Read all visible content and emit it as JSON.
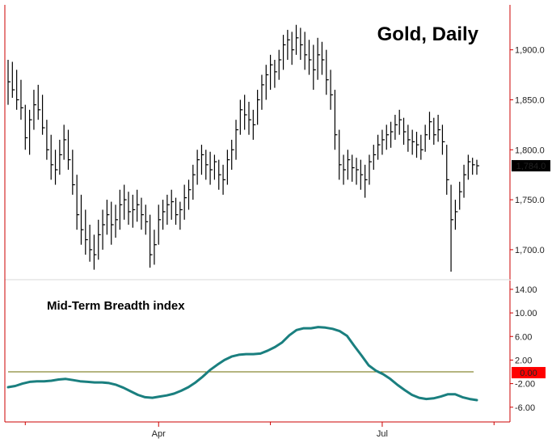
{
  "chart_data": [
    {
      "type": "ohlc",
      "title": "Gold, Daily",
      "last_value_label": "1,784.0",
      "ylim": [
        1670,
        1945
      ],
      "y_ticks": [
        1700,
        1750,
        1800,
        1850,
        1900
      ],
      "y_tick_labels": [
        "1,700.0",
        "1,750.0",
        "1,800.0",
        "1,850.0",
        "1,900.0"
      ],
      "x_tick_labels": [
        "Apr",
        "Jul"
      ],
      "grid": false,
      "colors": {
        "bars": "#000000",
        "axis": "#cc0000",
        "last_value_bg": "#000000",
        "last_value_text": "#ffffff"
      },
      "bars": [
        {
          "high": 1890,
          "low": 1845,
          "close": 1868
        },
        {
          "high": 1888,
          "low": 1852,
          "close": 1860
        },
        {
          "high": 1880,
          "low": 1840,
          "close": 1850
        },
        {
          "high": 1870,
          "low": 1830,
          "close": 1842
        },
        {
          "high": 1845,
          "low": 1800,
          "close": 1812
        },
        {
          "high": 1840,
          "low": 1795,
          "close": 1830
        },
        {
          "high": 1860,
          "low": 1820,
          "close": 1845
        },
        {
          "high": 1865,
          "low": 1830,
          "close": 1840
        },
        {
          "high": 1855,
          "low": 1815,
          "close": 1822
        },
        {
          "high": 1830,
          "low": 1790,
          "close": 1800
        },
        {
          "high": 1815,
          "low": 1770,
          "close": 1785
        },
        {
          "high": 1800,
          "low": 1765,
          "close": 1780
        },
        {
          "high": 1810,
          "low": 1775,
          "close": 1795
        },
        {
          "high": 1825,
          "low": 1790,
          "close": 1810
        },
        {
          "high": 1820,
          "low": 1780,
          "close": 1790
        },
        {
          "high": 1800,
          "low": 1755,
          "close": 1765
        },
        {
          "high": 1775,
          "low": 1720,
          "close": 1735
        },
        {
          "high": 1755,
          "low": 1705,
          "close": 1720
        },
        {
          "high": 1740,
          "low": 1695,
          "close": 1710
        },
        {
          "high": 1725,
          "low": 1688,
          "close": 1700
        },
        {
          "high": 1715,
          "low": 1680,
          "close": 1695
        },
        {
          "high": 1730,
          "low": 1690,
          "close": 1715
        },
        {
          "high": 1740,
          "low": 1700,
          "close": 1725
        },
        {
          "high": 1750,
          "low": 1715,
          "close": 1735
        },
        {
          "high": 1748,
          "low": 1705,
          "close": 1725
        },
        {
          "high": 1745,
          "low": 1712,
          "close": 1730
        },
        {
          "high": 1760,
          "low": 1720,
          "close": 1745
        },
        {
          "high": 1765,
          "low": 1730,
          "close": 1750
        },
        {
          "high": 1758,
          "low": 1725,
          "close": 1738
        },
        {
          "high": 1755,
          "low": 1722,
          "close": 1740
        },
        {
          "high": 1760,
          "low": 1728,
          "close": 1745
        },
        {
          "high": 1752,
          "low": 1720,
          "close": 1735
        },
        {
          "high": 1745,
          "low": 1715,
          "close": 1728
        },
        {
          "high": 1735,
          "low": 1682,
          "close": 1695
        },
        {
          "high": 1720,
          "low": 1685,
          "close": 1705
        },
        {
          "high": 1745,
          "low": 1705,
          "close": 1730
        },
        {
          "high": 1750,
          "low": 1720,
          "close": 1738
        },
        {
          "high": 1755,
          "low": 1725,
          "close": 1745
        },
        {
          "high": 1760,
          "low": 1730,
          "close": 1748
        },
        {
          "high": 1752,
          "low": 1725,
          "close": 1735
        },
        {
          "high": 1748,
          "low": 1720,
          "close": 1740
        },
        {
          "high": 1765,
          "low": 1730,
          "close": 1752
        },
        {
          "high": 1770,
          "low": 1740,
          "close": 1760
        },
        {
          "high": 1785,
          "low": 1750,
          "close": 1775
        },
        {
          "high": 1800,
          "low": 1765,
          "close": 1790
        },
        {
          "high": 1805,
          "low": 1775,
          "close": 1795
        },
        {
          "high": 1800,
          "low": 1770,
          "close": 1785
        },
        {
          "high": 1798,
          "low": 1765,
          "close": 1780
        },
        {
          "high": 1795,
          "low": 1770,
          "close": 1788
        },
        {
          "high": 1790,
          "low": 1760,
          "close": 1775
        },
        {
          "high": 1785,
          "low": 1755,
          "close": 1770
        },
        {
          "high": 1800,
          "low": 1765,
          "close": 1790
        },
        {
          "high": 1810,
          "low": 1780,
          "close": 1800
        },
        {
          "high": 1830,
          "low": 1790,
          "close": 1820
        },
        {
          "high": 1850,
          "low": 1815,
          "close": 1840
        },
        {
          "high": 1855,
          "low": 1820,
          "close": 1835
        },
        {
          "high": 1848,
          "low": 1815,
          "close": 1830
        },
        {
          "high": 1840,
          "low": 1810,
          "close": 1825
        },
        {
          "high": 1860,
          "low": 1825,
          "close": 1850
        },
        {
          "high": 1875,
          "low": 1840,
          "close": 1865
        },
        {
          "high": 1885,
          "low": 1850,
          "close": 1875
        },
        {
          "high": 1895,
          "low": 1860,
          "close": 1885
        },
        {
          "high": 1890,
          "low": 1862,
          "close": 1878
        },
        {
          "high": 1900,
          "low": 1870,
          "close": 1890
        },
        {
          "high": 1915,
          "low": 1880,
          "close": 1905
        },
        {
          "high": 1920,
          "low": 1890,
          "close": 1910
        },
        {
          "high": 1918,
          "low": 1885,
          "close": 1900
        },
        {
          "high": 1925,
          "low": 1895,
          "close": 1912
        },
        {
          "high": 1922,
          "low": 1890,
          "close": 1905
        },
        {
          "high": 1918,
          "low": 1880,
          "close": 1895
        },
        {
          "high": 1910,
          "low": 1875,
          "close": 1890
        },
        {
          "high": 1905,
          "low": 1860,
          "close": 1880
        },
        {
          "high": 1912,
          "low": 1870,
          "close": 1895
        },
        {
          "high": 1908,
          "low": 1875,
          "close": 1890
        },
        {
          "high": 1900,
          "low": 1855,
          "close": 1870
        },
        {
          "high": 1880,
          "low": 1840,
          "close": 1855
        },
        {
          "high": 1860,
          "low": 1800,
          "close": 1815
        },
        {
          "high": 1820,
          "low": 1770,
          "close": 1785
        },
        {
          "high": 1795,
          "low": 1765,
          "close": 1780
        },
        {
          "high": 1800,
          "low": 1770,
          "close": 1790
        },
        {
          "high": 1795,
          "low": 1768,
          "close": 1782
        },
        {
          "high": 1792,
          "low": 1765,
          "close": 1780
        },
        {
          "high": 1790,
          "low": 1760,
          "close": 1775
        },
        {
          "high": 1785,
          "low": 1752,
          "close": 1770
        },
        {
          "high": 1795,
          "low": 1765,
          "close": 1788
        },
        {
          "high": 1805,
          "low": 1780,
          "close": 1795
        },
        {
          "high": 1815,
          "low": 1790,
          "close": 1805
        },
        {
          "high": 1820,
          "low": 1795,
          "close": 1810
        },
        {
          "high": 1825,
          "low": 1800,
          "close": 1815
        },
        {
          "high": 1828,
          "low": 1802,
          "close": 1818
        },
        {
          "high": 1835,
          "low": 1810,
          "close": 1825
        },
        {
          "high": 1840,
          "low": 1815,
          "close": 1830
        },
        {
          "high": 1832,
          "low": 1805,
          "close": 1818
        },
        {
          "high": 1825,
          "low": 1798,
          "close": 1810
        },
        {
          "high": 1820,
          "low": 1795,
          "close": 1808
        },
        {
          "high": 1818,
          "low": 1792,
          "close": 1805
        },
        {
          "high": 1815,
          "low": 1790,
          "close": 1800
        },
        {
          "high": 1825,
          "low": 1798,
          "close": 1815
        },
        {
          "high": 1838,
          "low": 1810,
          "close": 1828
        },
        {
          "high": 1832,
          "low": 1805,
          "close": 1815
        },
        {
          "high": 1835,
          "low": 1808,
          "close": 1820
        },
        {
          "high": 1825,
          "low": 1795,
          "close": 1808
        },
        {
          "high": 1805,
          "low": 1755,
          "close": 1770
        },
        {
          "high": 1765,
          "low": 1678,
          "close": 1730
        },
        {
          "high": 1750,
          "low": 1720,
          "close": 1738
        },
        {
          "high": 1768,
          "low": 1740,
          "close": 1758
        },
        {
          "high": 1785,
          "low": 1752,
          "close": 1775
        },
        {
          "high": 1795,
          "low": 1770,
          "close": 1788
        },
        {
          "high": 1792,
          "low": 1775,
          "close": 1785
        },
        {
          "high": 1790,
          "low": 1775,
          "close": 1784
        }
      ]
    },
    {
      "type": "line",
      "title": "Mid-Term Breadth index",
      "ylim": [
        -8.5,
        15.5
      ],
      "y_ticks": [
        -6,
        -2,
        2,
        6,
        10,
        14
      ],
      "y_tick_labels": [
        "-6.00",
        "-2.00",
        "2.00",
        "6.00",
        "10.00",
        "14.00"
      ],
      "reference_line": {
        "value": 0,
        "label": "0.00",
        "color": "#6b6b00"
      },
      "grid": false,
      "colors": {
        "line": "#1a7f7f",
        "axis": "#cc0000",
        "ref_label_bg": "#ff0000",
        "ref_label_text": "#ffffff"
      },
      "series": [
        {
          "values": [
            -2.6,
            -2.4,
            -2.0,
            -1.7,
            -1.6,
            -1.6,
            -1.5,
            -1.3,
            -1.2,
            -1.4,
            -1.6,
            -1.7,
            -1.8,
            -1.8,
            -1.9,
            -2.2,
            -2.7,
            -3.3,
            -3.9,
            -4.3,
            -4.4,
            -4.2,
            -4.0,
            -3.7,
            -3.2,
            -2.6,
            -1.8,
            -0.8,
            0.3,
            1.2,
            2.0,
            2.6,
            2.9,
            3.0,
            3.0,
            3.1,
            3.6,
            4.2,
            5.0,
            6.2,
            7.1,
            7.4,
            7.4,
            7.6,
            7.5,
            7.3,
            6.9,
            6.1,
            4.4,
            2.8,
            1.1,
            0.2,
            -0.4,
            -1.2,
            -2.2,
            -3.1,
            -3.9,
            -4.4,
            -4.6,
            -4.5,
            -4.2,
            -3.8,
            -3.8,
            -4.3,
            -4.6,
            -4.8
          ]
        }
      ]
    }
  ]
}
